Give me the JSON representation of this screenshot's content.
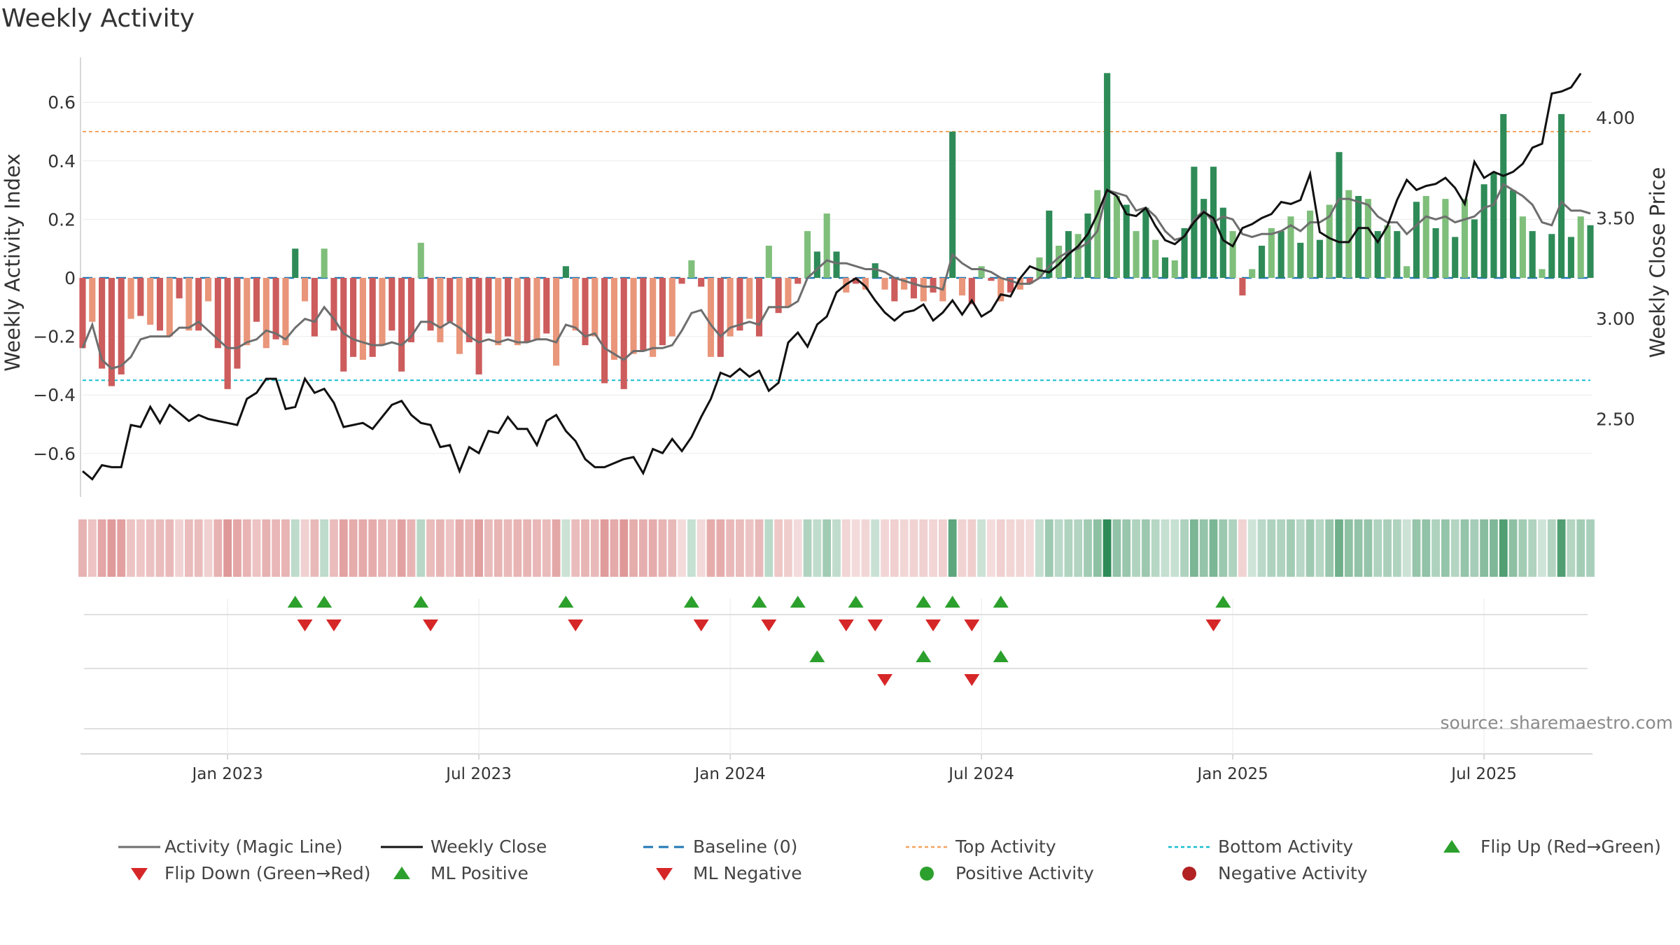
{
  "title": "Weekly Activity",
  "source": "source: sharemaestro.com",
  "colors": {
    "strong_green": "#2e8b57",
    "light_green": "#7fbf7b",
    "strong_red": "#cd5c5c",
    "light_red": "#e9967a",
    "magic_line": "#6e6e6e",
    "close_line": "#111111",
    "baseline": "#1f77b4",
    "top": "#f4a460",
    "bottom": "#17becf",
    "up_marker": "#2ca02c",
    "down_marker": "#d62728"
  },
  "legend": [
    {
      "label": "Activity (Magic Line)",
      "symbol": "line-gray"
    },
    {
      "label": "Weekly Close",
      "symbol": "line-black"
    },
    {
      "label": "Baseline (0)",
      "symbol": "dash-blue"
    },
    {
      "label": "Top Activity",
      "symbol": "dot-orange"
    },
    {
      "label": "Bottom Activity",
      "symbol": "dot-cyan"
    },
    {
      "label": "Flip Up (Red→Green)",
      "symbol": "tri-up-green"
    },
    {
      "label": "Flip Down (Green→Red)",
      "symbol": "tri-down-red"
    },
    {
      "label": "ML Positive",
      "symbol": "tri-up-green"
    },
    {
      "label": "ML Negative",
      "symbol": "tri-down-red"
    },
    {
      "label": "Positive Activity",
      "symbol": "circle-green"
    },
    {
      "label": "Negative Activity",
      "symbol": "circle-red"
    }
  ],
  "chart_data": {
    "type": "bar",
    "title": "Weekly Activity",
    "ylabel": "Weekly Activity Index",
    "y2label": "Weekly Close Price",
    "ylim": [
      -0.75,
      0.75
    ],
    "y2lim": [
      2.1,
      4.3
    ],
    "yticks": [
      0.6,
      0.4,
      0.2,
      0,
      -0.2,
      -0.4,
      -0.6
    ],
    "ytick_labels": [
      "0.6",
      "0.4",
      "0.2",
      "0",
      "−0.2",
      "−0.4",
      "−0.6"
    ],
    "y2ticks": [
      4.0,
      3.5,
      3.0,
      2.5
    ],
    "y2tick_labels": [
      "4.00",
      "3.50",
      "3.00",
      "2.50"
    ],
    "xticks": [
      15,
      41,
      67,
      93,
      119,
      145
    ],
    "xtick_labels": [
      "Jan 2023",
      "Jul 2023",
      "Jan 2024",
      "Jul 2024",
      "Jan 2025",
      "Jul 2025"
    ],
    "top_activity": 0.5,
    "bottom_activity": -0.35,
    "baseline": 0,
    "activity": [
      -0.24,
      -0.15,
      -0.31,
      -0.37,
      -0.33,
      -0.14,
      -0.13,
      -0.16,
      -0.18,
      -0.2,
      -0.07,
      -0.18,
      -0.18,
      -0.08,
      -0.24,
      -0.38,
      -0.31,
      -0.23,
      -0.15,
      -0.24,
      -0.21,
      -0.23,
      0.1,
      -0.08,
      -0.2,
      0.1,
      -0.18,
      -0.32,
      -0.27,
      -0.28,
      -0.27,
      -0.23,
      -0.18,
      -0.32,
      -0.22,
      0.12,
      -0.18,
      -0.22,
      -0.15,
      -0.26,
      -0.22,
      -0.33,
      -0.19,
      -0.23,
      -0.2,
      -0.23,
      -0.22,
      -0.21,
      -0.19,
      -0.3,
      0.04,
      -0.18,
      -0.23,
      -0.2,
      -0.36,
      -0.28,
      -0.38,
      -0.26,
      -0.25,
      -0.27,
      -0.23,
      -0.2,
      -0.02,
      0.06,
      -0.03,
      -0.27,
      -0.27,
      -0.2,
      -0.18,
      -0.14,
      -0.2,
      0.11,
      -0.12,
      -0.1,
      -0.02,
      0.16,
      0.09,
      0.22,
      0.09,
      -0.05,
      -0.02,
      -0.04,
      0.05,
      -0.04,
      -0.08,
      -0.04,
      -0.07,
      -0.08,
      -0.05,
      -0.08,
      0.5,
      -0.06,
      -0.09,
      0.04,
      -0.01,
      -0.08,
      -0.05,
      -0.04,
      -0.02,
      0.07,
      0.23,
      0.11,
      0.16,
      0.15,
      0.22,
      0.3,
      0.7,
      0.28,
      0.25,
      0.16,
      0.24,
      0.13,
      0.07,
      0.06,
      0.17,
      0.38,
      0.27,
      0.38,
      0.24,
      0.16,
      -0.06,
      0.03,
      0.11,
      0.17,
      0.16,
      0.21,
      0.12,
      0.23,
      0.13,
      0.25,
      0.43,
      0.3,
      0.28,
      0.27,
      0.16,
      0.18,
      0.16,
      0.04,
      0.26,
      0.28,
      0.17,
      0.27,
      0.14,
      0.27,
      0.2,
      0.32,
      0.36,
      0.56,
      0.3,
      0.21,
      0.16,
      0.03,
      0.15,
      0.56,
      0.14,
      0.21,
      0.18
    ],
    "magic_line": [
      -0.24,
      -0.16,
      -0.28,
      -0.31,
      -0.3,
      -0.27,
      -0.21,
      -0.2,
      -0.2,
      -0.2,
      -0.17,
      -0.17,
      -0.15,
      -0.18,
      -0.21,
      -0.24,
      -0.24,
      -0.22,
      -0.21,
      -0.18,
      -0.19,
      -0.21,
      -0.17,
      -0.14,
      -0.15,
      -0.1,
      -0.14,
      -0.19,
      -0.21,
      -0.22,
      -0.23,
      -0.23,
      -0.22,
      -0.23,
      -0.2,
      -0.15,
      -0.15,
      -0.17,
      -0.15,
      -0.17,
      -0.2,
      -0.22,
      -0.21,
      -0.22,
      -0.21,
      -0.22,
      -0.22,
      -0.21,
      -0.21,
      -0.22,
      -0.16,
      -0.17,
      -0.2,
      -0.19,
      -0.24,
      -0.26,
      -0.28,
      -0.25,
      -0.25,
      -0.24,
      -0.24,
      -0.23,
      -0.18,
      -0.12,
      -0.11,
      -0.16,
      -0.2,
      -0.17,
      -0.16,
      -0.15,
      -0.16,
      -0.1,
      -0.1,
      -0.1,
      -0.08,
      0.0,
      0.03,
      0.06,
      0.05,
      0.05,
      0.04,
      0.03,
      0.03,
      0.02,
      0.0,
      -0.01,
      -0.02,
      -0.03,
      -0.03,
      -0.04,
      0.08,
      0.05,
      0.03,
      0.03,
      0.02,
      0.0,
      -0.01,
      -0.02,
      -0.02,
      0.0,
      0.04,
      0.07,
      0.09,
      0.1,
      0.12,
      0.16,
      0.3,
      0.29,
      0.28,
      0.23,
      0.24,
      0.21,
      0.16,
      0.13,
      0.14,
      0.2,
      0.23,
      0.19,
      0.21,
      0.2,
      0.15,
      0.14,
      0.15,
      0.15,
      0.16,
      0.18,
      0.16,
      0.19,
      0.19,
      0.21,
      0.27,
      0.27,
      0.26,
      0.25,
      0.21,
      0.19,
      0.19,
      0.15,
      0.18,
      0.21,
      0.2,
      0.21,
      0.19,
      0.2,
      0.21,
      0.24,
      0.25,
      0.32,
      0.3,
      0.28,
      0.25,
      0.19,
      0.18,
      0.26,
      0.23,
      0.23,
      0.22
    ],
    "close": [
      2.24,
      2.2,
      2.27,
      2.26,
      2.26,
      2.47,
      2.46,
      2.56,
      2.48,
      2.57,
      2.53,
      2.49,
      2.52,
      2.5,
      2.49,
      2.48,
      2.47,
      2.6,
      2.63,
      2.7,
      2.7,
      2.55,
      2.56,
      2.7,
      2.63,
      2.65,
      2.58,
      2.46,
      2.47,
      2.48,
      2.45,
      2.51,
      2.57,
      2.59,
      2.52,
      2.48,
      2.47,
      2.36,
      2.37,
      2.24,
      2.36,
      2.33,
      2.44,
      2.43,
      2.51,
      2.45,
      2.45,
      2.37,
      2.49,
      2.52,
      2.44,
      2.39,
      2.3,
      2.26,
      2.26,
      2.28,
      2.3,
      2.31,
      2.23,
      2.35,
      2.33,
      2.4,
      2.34,
      2.41,
      2.51,
      2.6,
      2.73,
      2.71,
      2.75,
      2.71,
      2.74,
      2.64,
      2.68,
      2.88,
      2.93,
      2.86,
      2.97,
      3.01,
      3.13,
      3.17,
      3.2,
      3.16,
      3.09,
      3.03,
      2.99,
      3.03,
      3.04,
      3.07,
      2.99,
      3.03,
      3.09,
      3.02,
      3.09,
      3.01,
      3.04,
      3.12,
      3.11,
      3.2,
      3.26,
      3.24,
      3.23,
      3.27,
      3.32,
      3.36,
      3.42,
      3.52,
      3.64,
      3.61,
      3.52,
      3.51,
      3.55,
      3.46,
      3.39,
      3.37,
      3.41,
      3.48,
      3.53,
      3.5,
      3.39,
      3.36,
      3.45,
      3.47,
      3.5,
      3.52,
      3.58,
      3.57,
      3.59,
      3.72,
      3.43,
      3.4,
      3.38,
      3.38,
      3.45,
      3.45,
      3.38,
      3.46,
      3.59,
      3.69,
      3.64,
      3.66,
      3.67,
      3.7,
      3.65,
      3.57,
      3.78,
      3.7,
      3.73,
      3.71,
      3.73,
      3.77,
      3.85,
      3.87,
      4.12,
      4.13,
      4.15,
      4.22
    ],
    "flip_up": [
      22,
      25,
      35,
      50,
      63,
      70,
      74,
      80,
      87,
      90,
      95,
      118
    ],
    "flip_down": [
      23,
      26,
      36,
      51,
      64,
      71,
      79,
      82,
      88,
      92,
      117
    ],
    "ml_positive": [
      76,
      87,
      95
    ],
    "ml_negative": [
      83,
      92
    ]
  }
}
